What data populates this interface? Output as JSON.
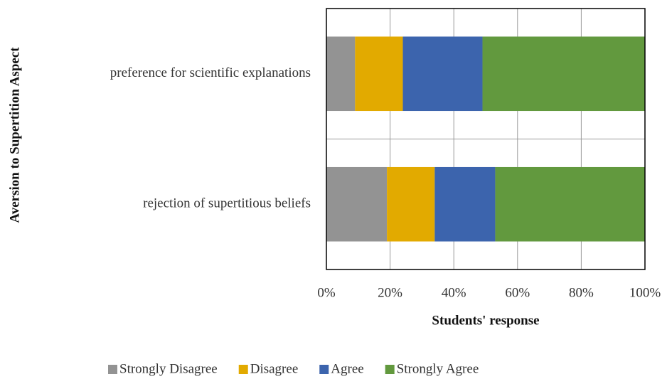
{
  "chart_data": {
    "type": "stacked_barh",
    "xlabel": "Students' response",
    "ylabel": "Aversion to Supertition Aspect",
    "categories": [
      "preference for scientific explanations",
      "rejection of supertitious beliefs"
    ],
    "series": [
      {
        "name": "Strongly Disagree",
        "color": "#939393",
        "values": [
          9,
          19
        ]
      },
      {
        "name": "Disagree",
        "color": "#e2aa00",
        "values": [
          15,
          15
        ]
      },
      {
        "name": "Agree",
        "color": "#3c64ad",
        "values": [
          25,
          19
        ]
      },
      {
        "name": "Strongly Agree",
        "color": "#62993e",
        "values": [
          51,
          47
        ]
      }
    ],
    "xlim": [
      0,
      100
    ],
    "xticks": [
      {
        "value": 0,
        "label": "0%"
      },
      {
        "value": 20,
        "label": "20%"
      },
      {
        "value": 40,
        "label": "40%"
      },
      {
        "value": 60,
        "label": "60%"
      },
      {
        "value": 80,
        "label": "80%"
      },
      {
        "value": 100,
        "label": "100%"
      }
    ],
    "grid": true,
    "legend": "bottom"
  }
}
